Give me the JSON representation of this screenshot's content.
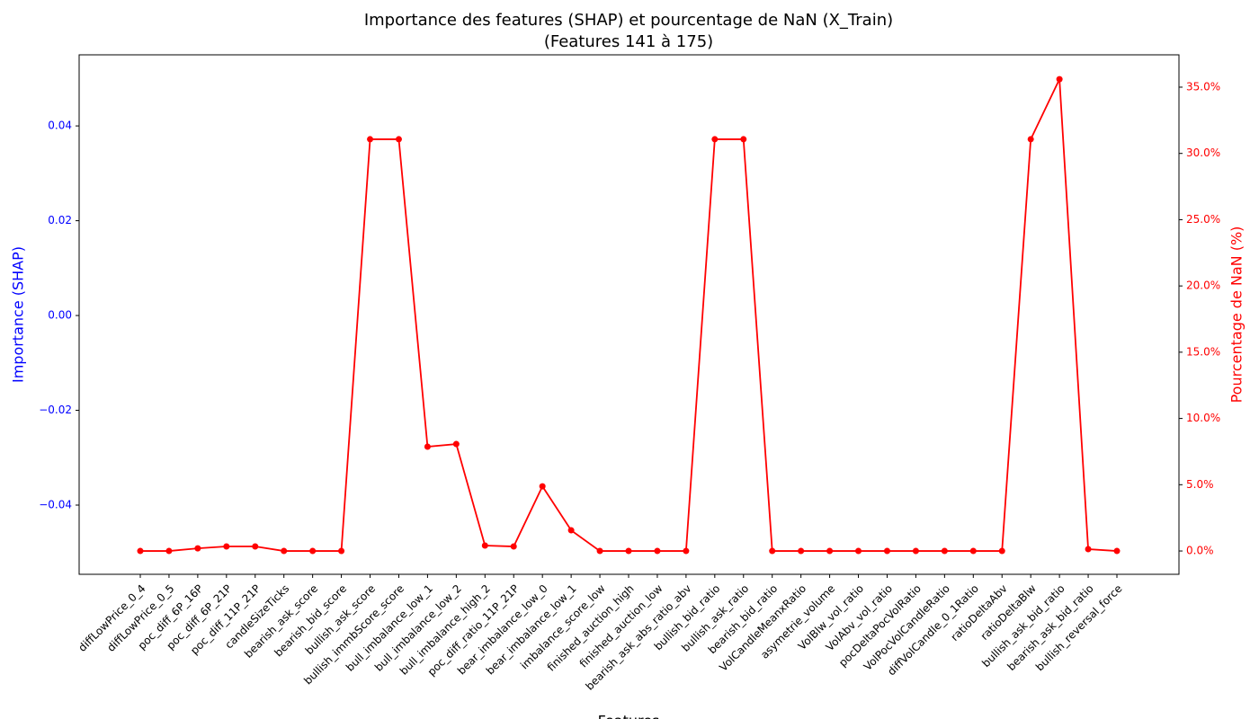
{
  "chart_data": {
    "type": "line",
    "title": [
      "Importance des features (SHAP) et pourcentage de NaN (X_Train)",
      "(Features 141 à 175)"
    ],
    "xlabel": "Features",
    "ylabel": "Importance (SHAP)",
    "y2label": "Pourcentage de NaN (%)",
    "categories": [
      "diffLowPrice_0_4",
      "diffLowPrice_0_5",
      "poc_diff_6P_16P",
      "poc_diff_6P_21P",
      "poc_diff_11P_21P",
      "candleSizeTicks",
      "bearish_ask_score",
      "bearish_bid_score",
      "bullish_ask_score",
      "bullish_immbScore_score",
      "bull_imbalance_low_1",
      "bull_imbalance_low_2",
      "bull_imbalance_high_2",
      "poc_diff_ratio_11P_21P",
      "bear_imbalance_low_0",
      "bear_imbalance_low_1",
      "imbalance_score_low",
      "finished_auction_high",
      "finished_auction_low",
      "bearish_ask_abs_ratio_abv",
      "bullish_bid_ratio",
      "bullish_ask_ratio",
      "bearish_bid_ratio",
      "VolCandleMeanxRatio",
      "asymetrie_volume",
      "VolBlw_vol_ratio",
      "VolAbv_vol_ratio",
      "pocDeltaPocVolRatio",
      "VolPocVolCandleRatio",
      "diffVolCandle_0_1Ratio",
      "ratioDeltaAbv",
      "ratioDeltaBlw",
      "bullish_ask_bid_ratio",
      "bearish_ask_bid_ratio",
      "bullish_reversal_force"
    ],
    "series": [
      {
        "name": "Pourcentage de NaN (%)",
        "color": "#ff0000",
        "axis": "y2",
        "values": [
          0,
          0,
          0.2,
          0.34,
          0.34,
          0,
          0,
          0,
          31.07,
          31.07,
          7.87,
          8.07,
          0.41,
          0.34,
          4.88,
          1.56,
          0,
          0,
          0,
          0,
          31.07,
          31.07,
          0,
          0,
          0,
          0,
          0,
          0,
          0,
          0,
          0,
          31.07,
          35.6,
          0.14,
          0
        ]
      }
    ],
    "ylim": [
      -0.0546,
      0.055
    ],
    "yticks": [
      {
        "value": -0.04,
        "label": "−0.04"
      },
      {
        "value": -0.02,
        "label": "−0.02"
      },
      {
        "value": 0,
        "label": "0.00"
      },
      0.02,
      0.04
    ],
    "y2lim": [
      -1.76,
      37.44
    ],
    "y2ticks": [
      {
        "value": 0,
        "label": "0.0%"
      },
      {
        "value": 5,
        "label": "5.0%"
      },
      {
        "value": 10,
        "label": "10.0%"
      },
      {
        "value": 15,
        "label": "15.0%"
      },
      {
        "value": 20,
        "label": "20.0%"
      },
      {
        "value": 25,
        "label": "25.0%"
      },
      {
        "value": 30,
        "label": "30.0%"
      },
      {
        "value": 35,
        "label": "35.0%"
      }
    ],
    "ycolor": "#0000ff",
    "y2color": "#ff0000"
  }
}
